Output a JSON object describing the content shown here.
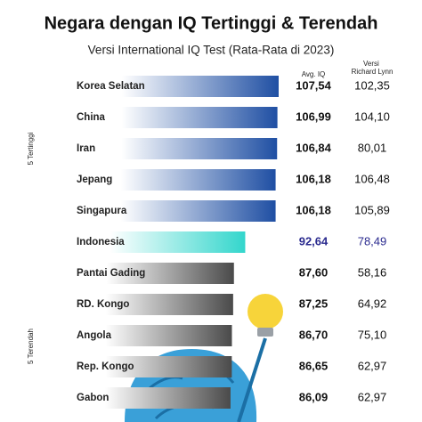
{
  "chart_data": {
    "type": "bar",
    "orientation": "horizontal",
    "title": "Negara dengan IQ Tertinggi & Terendah",
    "subtitle": "Versi International IQ Test (Rata-Rata di 2023)",
    "categories": [
      "Korea Selatan",
      "China",
      "Iran",
      "Jepang",
      "Singapura",
      "Indonesia",
      "Pantai Gading",
      "RD. Kongo",
      "Angola",
      "Rep. Kongo",
      "Gabon"
    ],
    "groups": [
      {
        "name": "5 Tertinggi",
        "size": 5
      },
      {
        "name": "5 Terendah",
        "size": 5
      }
    ],
    "series": [
      {
        "name": "Avg. IQ",
        "values": [
          107.54,
          106.99,
          106.84,
          106.18,
          106.18,
          92.64,
          87.6,
          87.25,
          86.7,
          86.65,
          86.09
        ],
        "value_labels": [
          "107,54",
          "106,99",
          "106,84",
          "106,18",
          "106,18",
          "92,64",
          "87,60",
          "87,25",
          "86,70",
          "86,65",
          "86,09"
        ]
      },
      {
        "name": "Versi Richard Lynn",
        "values": [
          102.35,
          104.1,
          80.01,
          106.48,
          105.89,
          78.49,
          58.16,
          64.92,
          75.1,
          62.97,
          62.97
        ],
        "value_labels": [
          "102,35",
          "104,10",
          "80,01",
          "106,48",
          "105,89",
          "78,49",
          "58,16",
          "64,92",
          "75,10",
          "62,97",
          "62,97"
        ]
      }
    ],
    "colors": [
      "#1f4fa3",
      "#1f4fa3",
      "#1f4fa3",
      "#1f4fa3",
      "#1f4fa3",
      "#33d6cc",
      "#4a4a4a",
      "#4a4a4a",
      "#4a4a4a",
      "#4a4a4a",
      "#4a4a4a"
    ],
    "label_colors": [
      "#111111",
      "#111111",
      "#111111",
      "#111111",
      "#111111",
      "#2b2b8f",
      "#111111",
      "#111111",
      "#111111",
      "#111111",
      "#111111"
    ]
  }
}
